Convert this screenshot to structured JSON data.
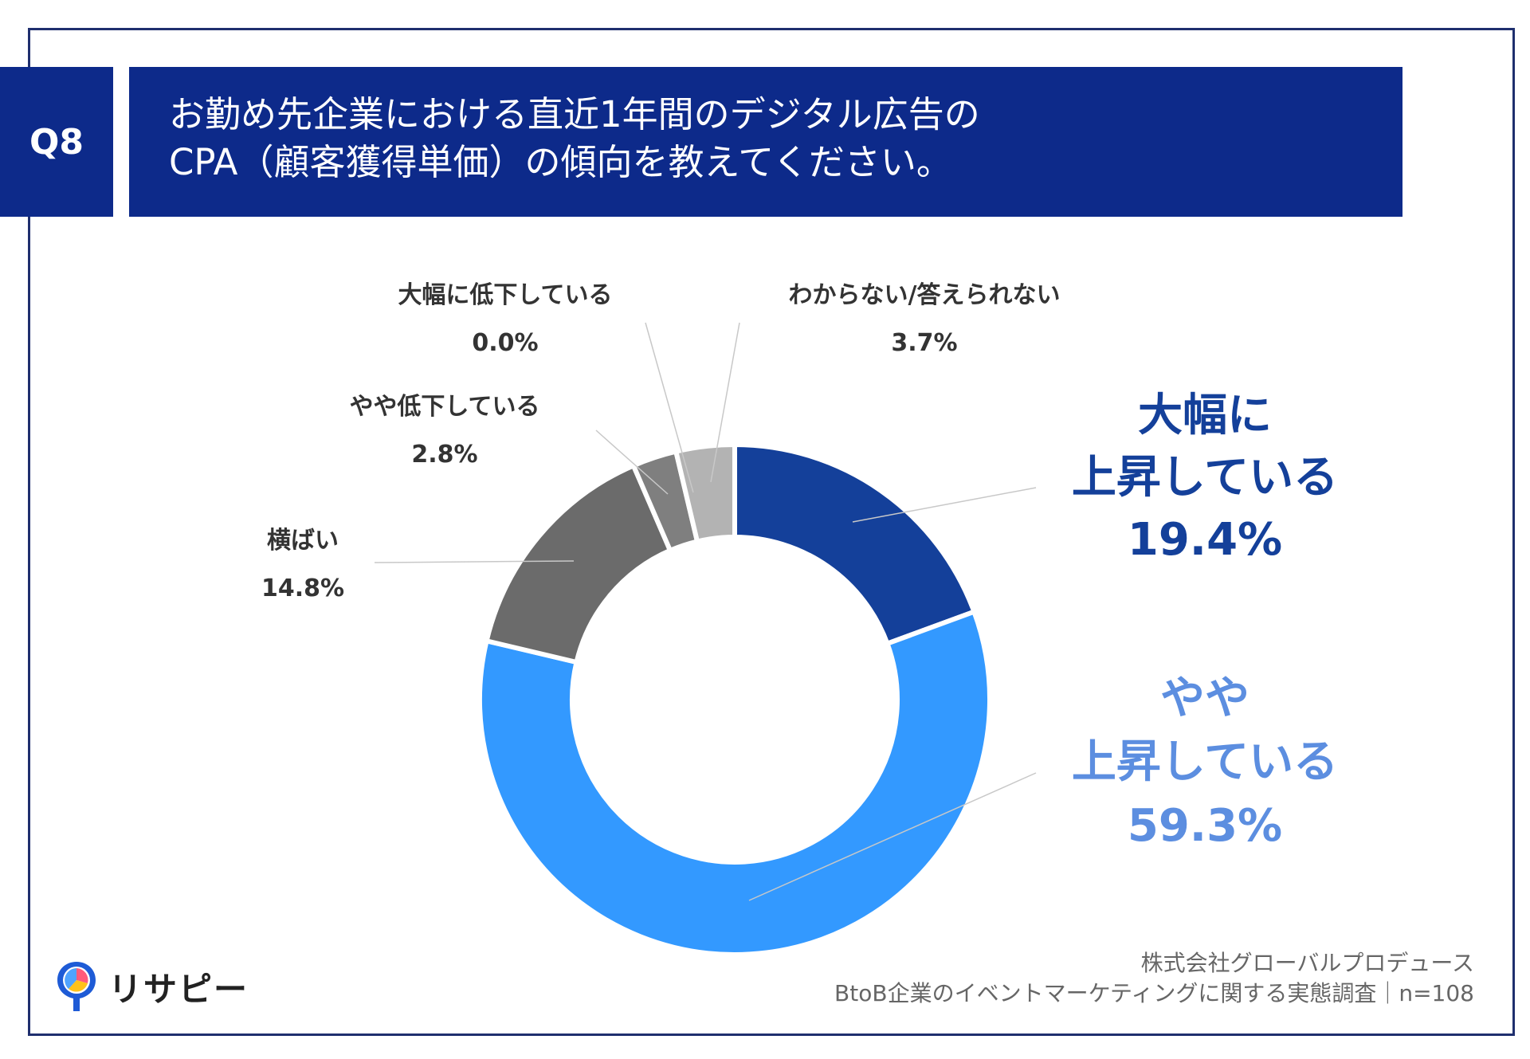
{
  "question": {
    "badge": "Q8",
    "title_line1": "お勤め先企業における直近1年間のデジタル広告の",
    "title_line2": "CPA（顧客獲得単価）の傾向を教えてください。"
  },
  "chart_data": {
    "type": "pie",
    "donut": true,
    "slices": [
      {
        "label_lines": [
          "大幅に",
          "上昇している"
        ],
        "value": 19.4,
        "value_text": "19.4%",
        "color": "#14409a",
        "label_color": "#14409a",
        "emphasis": true
      },
      {
        "label_lines": [
          "やや",
          "上昇している"
        ],
        "value": 59.3,
        "value_text": "59.3%",
        "color": "#3399ff",
        "label_color": "#5c8ee0",
        "emphasis": true
      },
      {
        "label_lines": [
          "横ばい"
        ],
        "value": 14.8,
        "value_text": "14.8%",
        "color": "#6b6b6b",
        "label_color": "#333333",
        "emphasis": false
      },
      {
        "label_lines": [
          "やや低下している"
        ],
        "value": 2.8,
        "value_text": "2.8%",
        "color": "#7f7f7f",
        "label_color": "#333333",
        "emphasis": false
      },
      {
        "label_lines": [
          "大幅に低下している"
        ],
        "value": 0.0,
        "value_text": "0.0%",
        "color": "#999999",
        "label_color": "#333333",
        "emphasis": false
      },
      {
        "label_lines": [
          "わからない/答えられない"
        ],
        "value": 3.7,
        "value_text": "3.7%",
        "color": "#b3b3b3",
        "label_color": "#333333",
        "emphasis": false
      }
    ]
  },
  "footer": {
    "company": "株式会社グローバルプロデュース",
    "survey": "BtoB企業のイベントマーケティングに関する実態調査｜n=108"
  },
  "logo": {
    "text": "リサピー",
    "icon": "pin-logo-icon"
  }
}
